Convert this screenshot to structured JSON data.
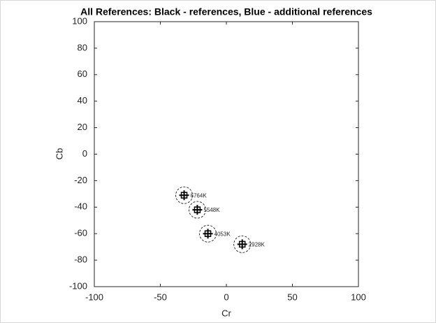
{
  "chart_data": {
    "type": "scatter",
    "title": "All References: Black - references, Blue - additional references",
    "xlabel": "Cr",
    "ylabel": "Cb",
    "x": [
      -32,
      -22,
      -14,
      12
    ],
    "values": [
      -31,
      -42,
      -60,
      -68
    ],
    "point_labels": [
      "6764K",
      "5548K",
      "4053K",
      "2928K"
    ],
    "color": "#000000",
    "xlim": [
      -100,
      100
    ],
    "ylim": [
      -100,
      100
    ],
    "xticks": [
      -100,
      -50,
      0,
      50,
      100
    ],
    "yticks": [
      -100,
      -80,
      -60,
      -40,
      -20,
      0,
      20,
      40,
      60,
      80,
      100
    ]
  }
}
